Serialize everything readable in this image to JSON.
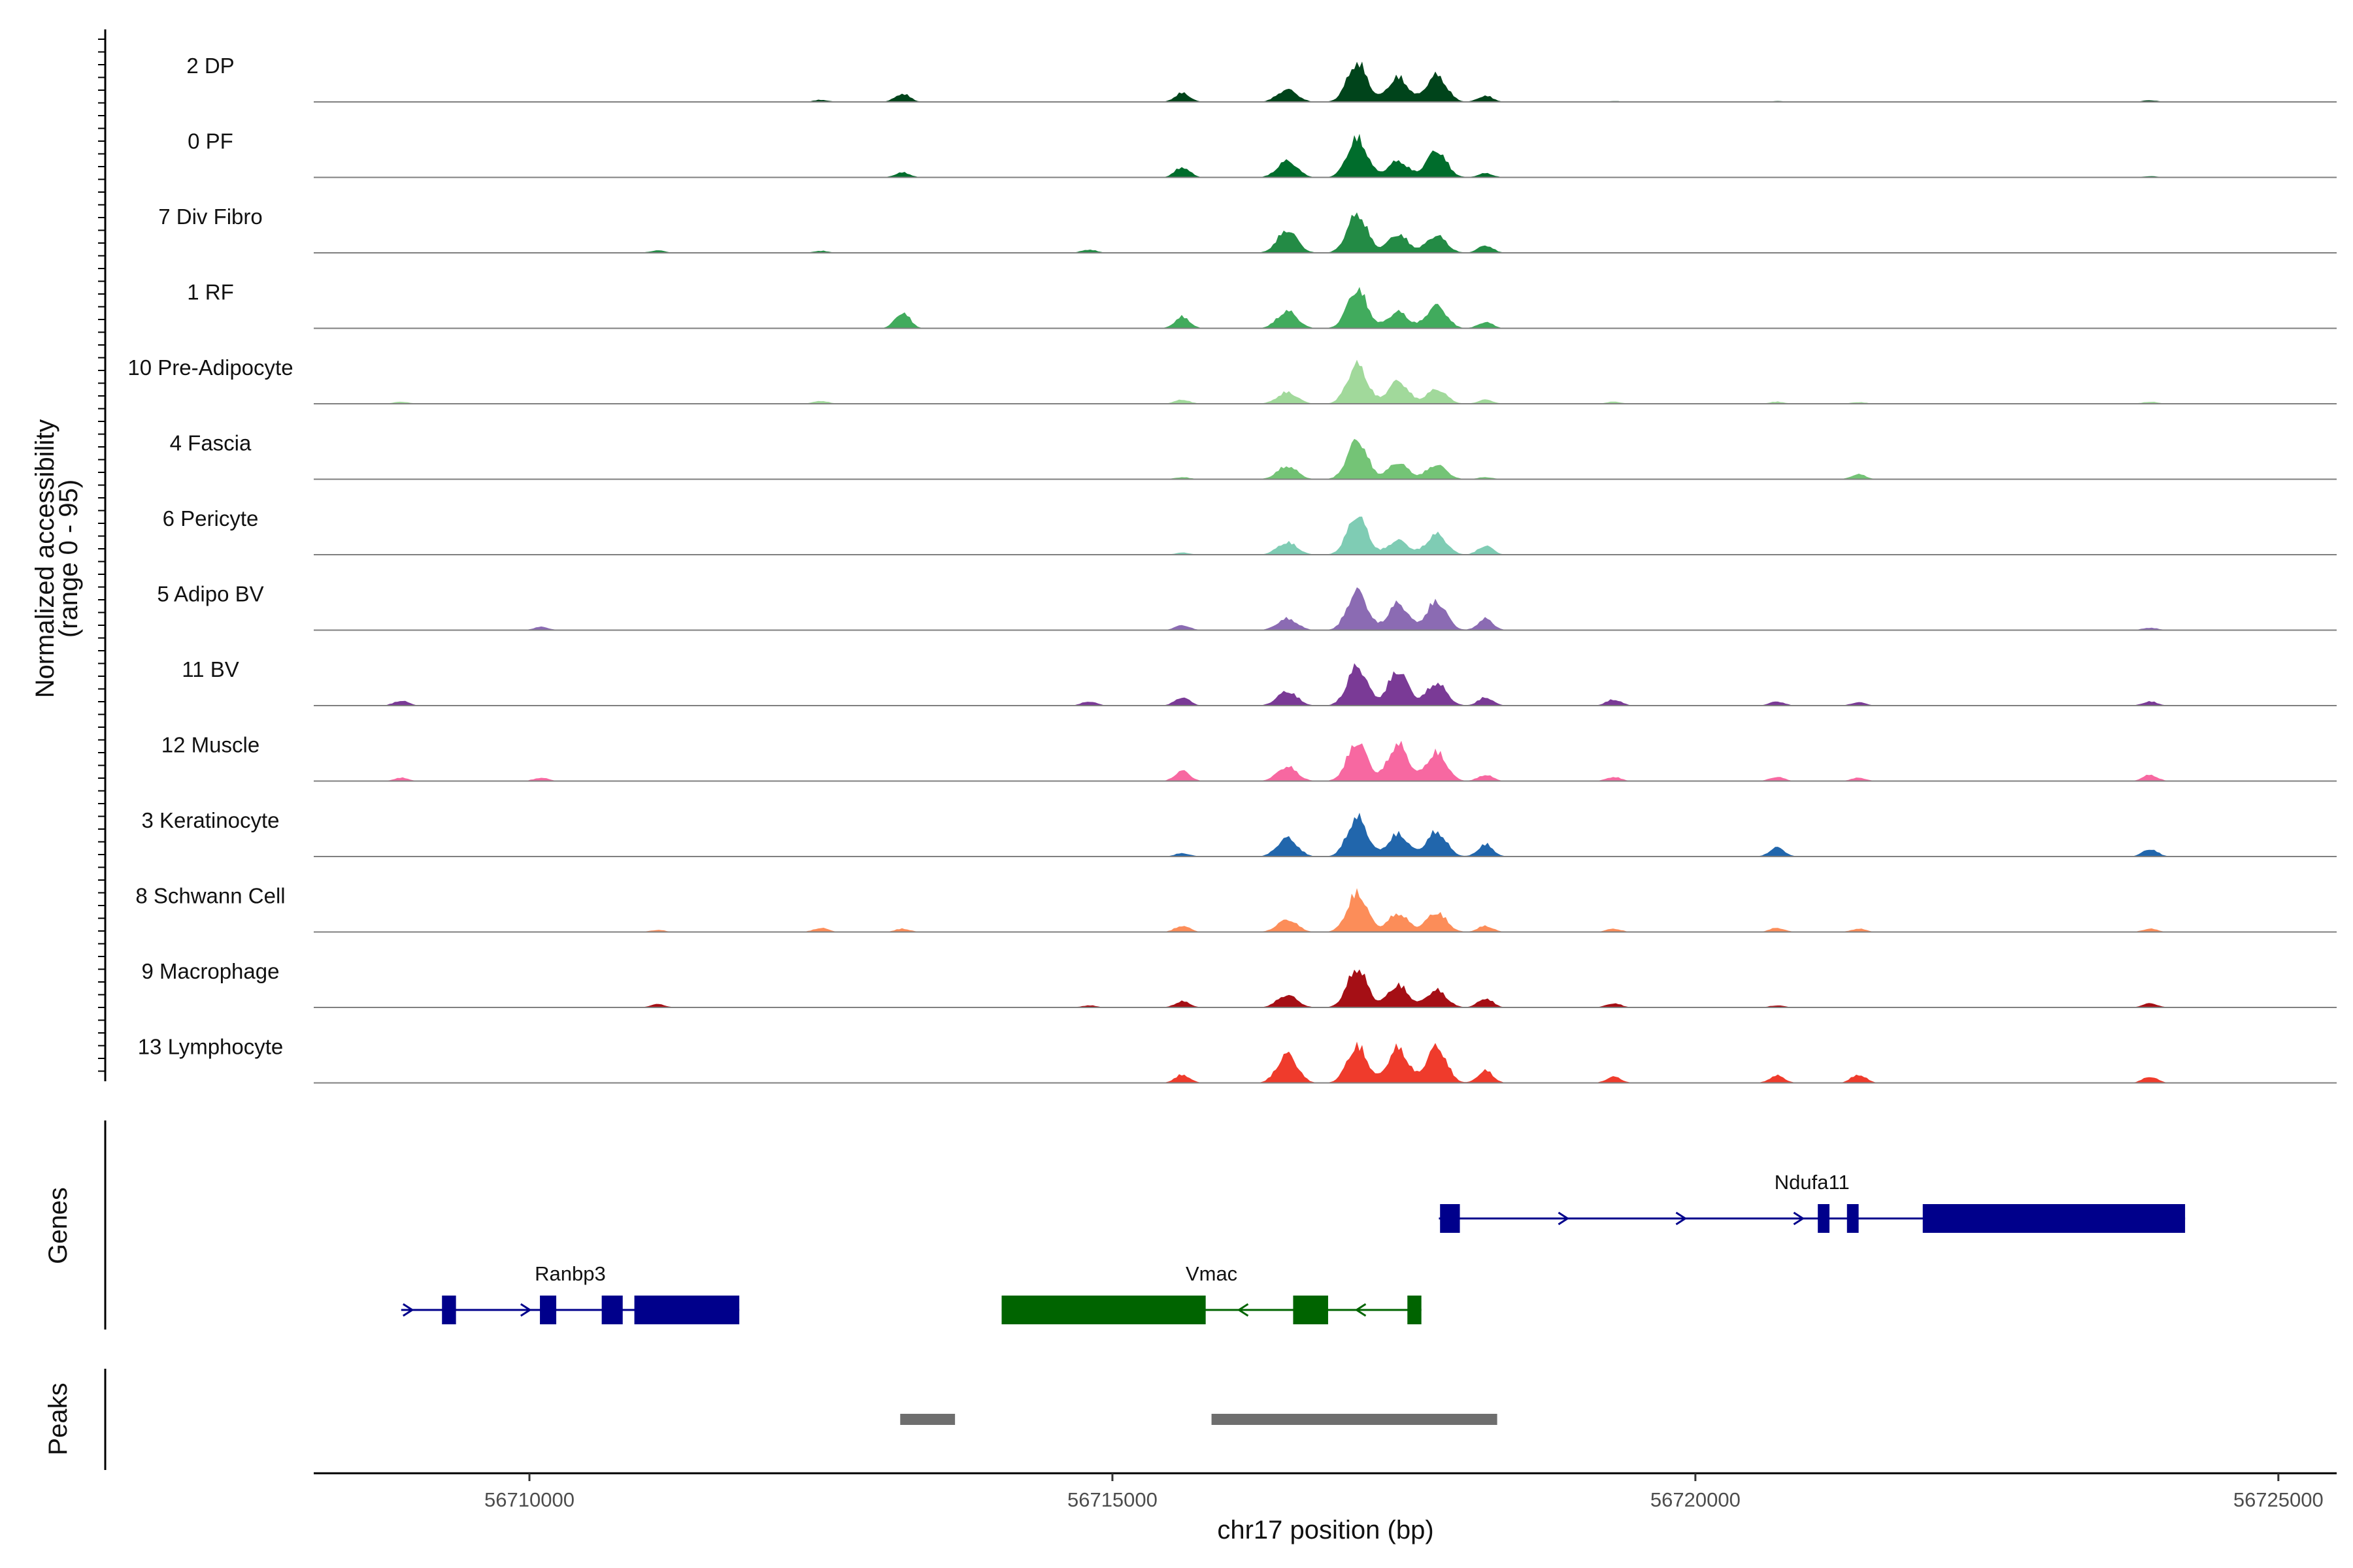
{
  "chart_data": {
    "type": "area",
    "title": "",
    "chromosome": "chr17",
    "xlabel": "chr17 position (bp)",
    "ylabel_line1": "Normalized accessibility",
    "ylabel_line2": "(range 0 - 95)",
    "y_range": [
      0,
      95
    ],
    "xlim": [
      56708150,
      56725500
    ],
    "x_ticks": [
      56710000,
      56715000,
      56720000,
      56725000
    ],
    "x_tick_labels": [
      "56710000",
      "56715000",
      "56720000",
      "56725000"
    ],
    "peak_positions": [
      56708900,
      56710100,
      56711100,
      56712500,
      56713200,
      56714800,
      56715600,
      56716500,
      56717100,
      56717450,
      56717780,
      56718200,
      56719300,
      56720700,
      56721400,
      56723900
    ],
    "tracks": [
      {
        "label": "2 DP",
        "color": "#00441b",
        "values": [
          0,
          0,
          0,
          5,
          20,
          0,
          22,
          30,
          95,
          60,
          65,
          15,
          2,
          2,
          0,
          4
        ]
      },
      {
        "label": "0 PF",
        "color": "#006d2c",
        "values": [
          0,
          0,
          0,
          0,
          12,
          0,
          25,
          40,
          95,
          40,
          65,
          10,
          0,
          0,
          0,
          3
        ]
      },
      {
        "label": "7 Div Fibro",
        "color": "#238b45",
        "values": [
          0,
          0,
          6,
          5,
          0,
          8,
          0,
          55,
          95,
          45,
          42,
          18,
          0,
          0,
          0,
          0
        ]
      },
      {
        "label": "1 RF",
        "color": "#41ab5d",
        "values": [
          0,
          0,
          0,
          0,
          38,
          0,
          28,
          42,
          95,
          40,
          55,
          15,
          0,
          0,
          0,
          0
        ]
      },
      {
        "label": "10 Pre-Adipocyte",
        "color": "#a1d99b",
        "values": [
          5,
          0,
          0,
          7,
          0,
          0,
          10,
          28,
          95,
          55,
          35,
          10,
          5,
          5,
          4,
          5
        ]
      },
      {
        "label": "4 Fascia",
        "color": "#74c476",
        "values": [
          0,
          0,
          0,
          0,
          0,
          0,
          5,
          32,
          95,
          40,
          35,
          5,
          0,
          0,
          12,
          0
        ]
      },
      {
        "label": "6 Pericyte",
        "color": "#7fccb4",
        "values": [
          0,
          0,
          0,
          0,
          0,
          0,
          5,
          30,
          95,
          35,
          50,
          22,
          0,
          0,
          0,
          0
        ]
      },
      {
        "label": "5 Adipo BV",
        "color": "#8b6bb3",
        "values": [
          0,
          8,
          0,
          0,
          0,
          0,
          12,
          28,
          95,
          65,
          70,
          28,
          0,
          0,
          0,
          6
        ]
      },
      {
        "label": "11 BV",
        "color": "#7a3a96",
        "values": [
          12,
          0,
          0,
          0,
          0,
          10,
          20,
          35,
          95,
          85,
          55,
          20,
          15,
          10,
          8,
          10
        ]
      },
      {
        "label": "12 Muscle",
        "color": "#f768a1",
        "values": [
          8,
          8,
          0,
          0,
          0,
          0,
          25,
          35,
          95,
          90,
          70,
          15,
          10,
          10,
          8,
          15
        ]
      },
      {
        "label": "3 Keratinocyte",
        "color": "#2166ac",
        "values": [
          0,
          0,
          0,
          0,
          0,
          0,
          8,
          45,
          95,
          55,
          60,
          30,
          0,
          22,
          0,
          18
        ]
      },
      {
        "label": "8 Schwann Cell",
        "color": "#fc8d59",
        "values": [
          0,
          0,
          5,
          10,
          8,
          0,
          15,
          30,
          95,
          45,
          48,
          15,
          8,
          10,
          8,
          8
        ]
      },
      {
        "label": "9 Macrophage",
        "color": "#a50f15",
        "values": [
          0,
          0,
          8,
          0,
          0,
          5,
          15,
          30,
          95,
          55,
          42,
          22,
          10,
          5,
          0,
          10
        ]
      },
      {
        "label": "13 Lymphocyte",
        "color": "#ef3b2c",
        "values": [
          0,
          0,
          0,
          0,
          0,
          0,
          20,
          70,
          90,
          85,
          88,
          30,
          15,
          18,
          20,
          15
        ]
      }
    ],
    "genes_track_label": "Genes",
    "peaks_track_label": "Peaks",
    "genes": [
      {
        "name": "Ranbp3",
        "strand": "+",
        "color": "#00008b",
        "start": 56708900,
        "end": 56711800,
        "exons": [
          [
            56709250,
            56709370
          ],
          [
            56710090,
            56710230
          ],
          [
            56710620,
            56710800
          ],
          [
            56710900,
            56711800
          ]
        ]
      },
      {
        "name": "Vmac",
        "strand": "-",
        "color": "#006400",
        "start": 56714050,
        "end": 56717650,
        "exons": [
          [
            56714050,
            56715800
          ],
          [
            56716550,
            56716850
          ],
          [
            56717530,
            56717650
          ]
        ]
      },
      {
        "name": "Ndufa11",
        "strand": "+",
        "color": "#00008b",
        "start": 56717800,
        "end": 56724200,
        "exons": [
          [
            56717810,
            56717980
          ],
          [
            56721050,
            56721150
          ],
          [
            56721300,
            56721400
          ],
          [
            56721950,
            56724200
          ]
        ]
      }
    ],
    "peaks": [
      {
        "start": 56713180,
        "end": 56713650
      },
      {
        "start": 56715850,
        "end": 56718300
      }
    ]
  }
}
